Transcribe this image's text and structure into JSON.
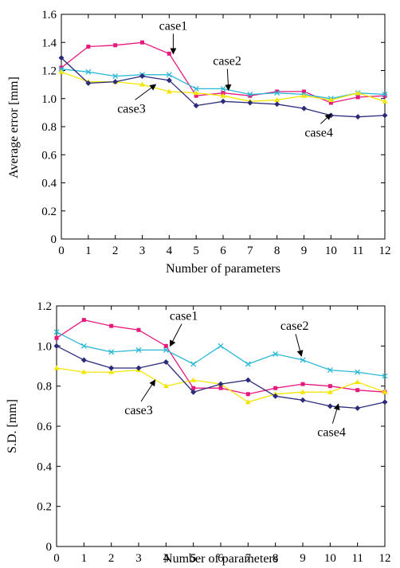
{
  "chart_data": [
    {
      "type": "line",
      "xlabel": "Number of parameters",
      "ylabel": "Average error [mm]",
      "x": [
        0,
        1,
        2,
        3,
        4,
        5,
        6,
        7,
        8,
        9,
        10,
        11,
        12
      ],
      "xlim": [
        0,
        12
      ],
      "ylim": [
        0,
        1.6
      ],
      "yticks": [
        "0",
        "0.2",
        "0.4",
        "0.6",
        "0.8",
        "1.0",
        "1.2",
        "1.4",
        "1.6"
      ],
      "yticks_vals": [
        0,
        0.2,
        0.4,
        0.6,
        0.8,
        1.0,
        1.2,
        1.4,
        1.6
      ],
      "xticks": [
        "0",
        "1",
        "2",
        "3",
        "4",
        "5",
        "6",
        "7",
        "8",
        "9",
        "10",
        "11",
        "12"
      ],
      "series": [
        {
          "name": "case1",
          "color": "#e6197d",
          "marker": "square",
          "values": [
            1.22,
            1.37,
            1.38,
            1.4,
            1.32,
            1.02,
            1.04,
            1.02,
            1.05,
            1.05,
            0.97,
            1.01,
            1.02
          ]
        },
        {
          "name": "case2",
          "color": "#2ab8d6",
          "marker": "x",
          "values": [
            1.21,
            1.19,
            1.16,
            1.17,
            1.17,
            1.07,
            1.07,
            1.03,
            1.04,
            1.03,
            1.0,
            1.04,
            1.03
          ]
        },
        {
          "name": "case3",
          "color": "#f2e600",
          "marker": "triangle",
          "values": [
            1.19,
            1.12,
            1.12,
            1.1,
            1.05,
            1.04,
            1.02,
            0.98,
            0.99,
            1.02,
            0.99,
            1.04,
            0.98
          ]
        },
        {
          "name": "case4",
          "color": "#2b2b7a",
          "marker": "diamond",
          "values": [
            1.29,
            1.11,
            1.12,
            1.16,
            1.13,
            0.95,
            0.98,
            0.97,
            0.96,
            0.93,
            0.88,
            0.87,
            0.88
          ]
        }
      ],
      "annotations": [
        {
          "label": "case1",
          "x": 4.15,
          "y": 1.32,
          "text_x": 4.15,
          "text_y": 1.49
        },
        {
          "label": "case2",
          "x": 6.2,
          "y": 1.06,
          "text_x": 6.15,
          "text_y": 1.24
        },
        {
          "label": "case3",
          "x": 3.5,
          "y": 1.1,
          "text_x": 2.6,
          "text_y": 0.9
        },
        {
          "label": "case4",
          "x": 10.0,
          "y": 0.89,
          "text_x": 9.55,
          "text_y": 0.73
        }
      ]
    },
    {
      "type": "line",
      "xlabel": "Number of parameters",
      "ylabel": "S.D. [mm]",
      "x": [
        0,
        1,
        2,
        3,
        4,
        5,
        6,
        7,
        8,
        9,
        10,
        11,
        12
      ],
      "xlim": [
        0,
        12
      ],
      "ylim": [
        0,
        1.2
      ],
      "yticks": [
        "0",
        "0.2",
        "0.4",
        "0.6",
        "0.8",
        "1.0",
        "1.2"
      ],
      "yticks_vals": [
        0,
        0.2,
        0.4,
        0.6,
        0.8,
        1.0,
        1.2
      ],
      "xticks": [
        "0",
        "1",
        "2",
        "3",
        "4",
        "5",
        "6",
        "7",
        "8",
        "9",
        "10",
        "11",
        "12"
      ],
      "series": [
        {
          "name": "case1",
          "color": "#e6197d",
          "marker": "square",
          "values": [
            1.04,
            1.13,
            1.1,
            1.08,
            1.0,
            0.79,
            0.79,
            0.76,
            0.79,
            0.81,
            0.8,
            0.78,
            0.77
          ]
        },
        {
          "name": "case2",
          "color": "#2ab8d6",
          "marker": "x",
          "values": [
            1.07,
            1.0,
            0.97,
            0.98,
            0.98,
            0.91,
            1.0,
            0.91,
            0.96,
            0.93,
            0.88,
            0.87,
            0.85
          ]
        },
        {
          "name": "case3",
          "color": "#f2e600",
          "marker": "triangle",
          "values": [
            0.89,
            0.87,
            0.87,
            0.88,
            0.8,
            0.83,
            0.81,
            0.72,
            0.76,
            0.77,
            0.77,
            0.82,
            0.77
          ]
        },
        {
          "name": "case4",
          "color": "#2b2b7a",
          "marker": "diamond",
          "values": [
            1.0,
            0.93,
            0.89,
            0.89,
            0.92,
            0.77,
            0.81,
            0.83,
            0.75,
            0.73,
            0.7,
            0.69,
            0.72
          ]
        }
      ],
      "annotations": [
        {
          "label": "case1",
          "x": 4.15,
          "y": 1.0,
          "text_x": 4.65,
          "text_y": 1.13
        },
        {
          "label": "case2",
          "x": 8.95,
          "y": 0.95,
          "text_x": 8.7,
          "text_y": 1.08
        },
        {
          "label": "case3",
          "x": 3.6,
          "y": 0.83,
          "text_x": 3.0,
          "text_y": 0.66
        },
        {
          "label": "case4",
          "x": 10.3,
          "y": 0.71,
          "text_x": 10.05,
          "text_y": 0.55
        }
      ]
    }
  ]
}
